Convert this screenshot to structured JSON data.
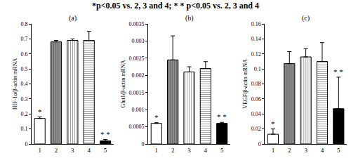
{
  "title": "*p<0.05 vs. 2, 3 and 4; * * p<0.05 vs. 2, 3 and 4",
  "chart_data": [
    {
      "type": "bar",
      "title": "(a)",
      "y_label": "HIF-1α/β-actin mRNA",
      "categories": [
        "1",
        "2",
        "3",
        "4",
        "5"
      ],
      "values": [
        0.17,
        0.68,
        0.69,
        0.69,
        0.02
      ],
      "errors": [
        0.01,
        0.01,
        0.01,
        0.06,
        0.01
      ],
      "colors": [
        "#ffffff",
        "#8c8c8c",
        "#ffffff",
        "#ffffff",
        "#000000"
      ],
      "ylim": [
        0,
        0.8
      ],
      "yticks": [
        0,
        0.1,
        0.2,
        0.3,
        0.4,
        0.5,
        0.6,
        0.7,
        0.8
      ],
      "grid": false,
      "annotations": [
        {
          "text": "*",
          "category": "1"
        },
        {
          "text": "* *",
          "category": "5"
        }
      ]
    },
    {
      "type": "bar",
      "title": "(b)",
      "y_label": "Glut1/β-actin mRNA",
      "categories": [
        "1",
        "2",
        "3",
        "4",
        "5"
      ],
      "values": [
        0.0006,
        0.00245,
        0.0021,
        0.0022,
        0.0006
      ],
      "errors": [
        2e-05,
        0.0007,
        0.00015,
        0.0002,
        3e-05
      ],
      "colors": [
        "#ffffff",
        "#8c8c8c",
        "#ffffff",
        "#ffffff",
        "#000000"
      ],
      "ylim": [
        0,
        0.0035
      ],
      "yticks": [
        0,
        0.0005,
        0.001,
        0.0015,
        0.002,
        0.0025,
        0.003,
        0.0035
      ],
      "grid": false,
      "annotations": [
        {
          "text": "*",
          "category": "1"
        },
        {
          "text": "* *",
          "category": "5"
        }
      ]
    },
    {
      "type": "bar",
      "title": "(c)",
      "y_label": "VEGF/β-actin mRNA",
      "categories": [
        "1",
        "2",
        "3",
        "4",
        "5"
      ],
      "values": [
        0.013,
        0.107,
        0.116,
        0.11,
        0.047
      ],
      "errors": [
        0.007,
        0.016,
        0.011,
        0.025,
        0.042
      ],
      "colors": [
        "#ffffff",
        "#8c8c8c",
        "#ffffff",
        "#ffffff",
        "#000000"
      ],
      "ylim": [
        0,
        0.16
      ],
      "yticks": [
        0,
        0.02,
        0.04,
        0.06,
        0.08,
        0.1,
        0.12,
        0.14,
        0.16
      ],
      "grid": false,
      "annotations": [
        {
          "text": "*",
          "category": "1"
        },
        {
          "text": "* *",
          "category": "5"
        }
      ]
    }
  ]
}
